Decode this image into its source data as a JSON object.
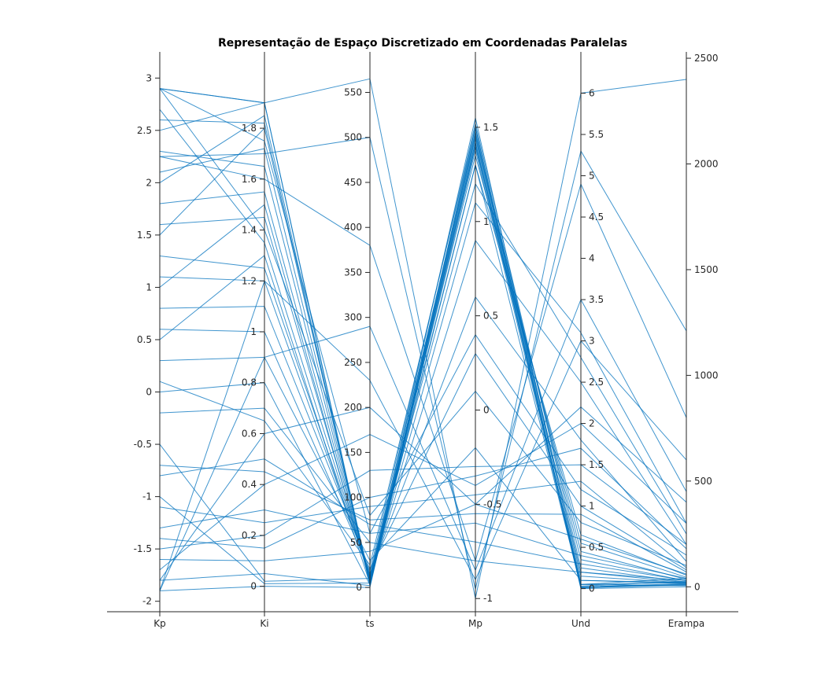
{
  "chart_data": {
    "type": "parallel-coordinates",
    "title": "Representação de Espaço Discretizado em Coordenadas Paralelas",
    "line_color": "#0072BD",
    "axes": [
      {
        "name": "Kp",
        "range": [
          -2.1,
          3.25
        ],
        "ticks": [
          -2,
          -1.5,
          -1,
          -0.5,
          0,
          0.5,
          1,
          1.5,
          2,
          2.5,
          3
        ],
        "tick_labels": [
          "-2",
          "-1.5",
          "-1",
          "-0.5",
          "0",
          "0.5",
          "1",
          "1.5",
          "2",
          "2.5",
          "3"
        ],
        "tick_side": "left"
      },
      {
        "name": "Ki",
        "range": [
          -0.1,
          2.1
        ],
        "ticks": [
          0,
          0.2,
          0.4,
          0.6,
          0.8,
          1,
          1.2,
          1.4,
          1.6,
          1.8
        ],
        "tick_labels": [
          "0",
          "0.2",
          "0.4",
          "0.6",
          "0.8",
          "1",
          "1.2",
          "1.4",
          "1.6",
          "1.8"
        ],
        "tick_side": "left"
      },
      {
        "name": "ts",
        "range": [
          -27,
          595
        ],
        "ticks": [
          0,
          50,
          100,
          150,
          200,
          250,
          300,
          350,
          400,
          450,
          500,
          550
        ],
        "tick_labels": [
          "0",
          "50",
          "100",
          "150",
          "200",
          "250",
          "300",
          "350",
          "400",
          "450",
          "500",
          "550"
        ],
        "tick_side": "left"
      },
      {
        "name": "Mp",
        "range": [
          -1.07,
          1.9
        ],
        "ticks": [
          -1,
          -0.5,
          0,
          0.5,
          1,
          1.5
        ],
        "tick_labels": [
          "-1",
          "-0.5",
          "0",
          "0.5",
          "1",
          "1.5"
        ],
        "tick_side": "right"
      },
      {
        "name": "Und",
        "range": [
          -0.28,
          6.5
        ],
        "ticks": [
          0,
          0.5,
          1,
          1.5,
          2,
          2.5,
          3,
          3.5,
          4,
          4.5,
          5,
          5.5,
          6
        ],
        "tick_labels": [
          "0",
          "0.5",
          "1",
          "1.5",
          "2",
          "2.5",
          "3",
          "3.5",
          "4",
          "4.5",
          "5",
          "5.5",
          "6"
        ],
        "tick_side": "right"
      },
      {
        "name": "Erampa",
        "range": [
          -118,
          2530
        ],
        "ticks": [
          0,
          500,
          1000,
          1500,
          2000,
          2500
        ],
        "tick_labels": [
          "0",
          "500",
          "1000",
          "1500",
          "2000",
          "2500"
        ],
        "tick_side": "right"
      }
    ],
    "observations": [
      [
        2.9,
        1.9,
        5,
        1.42,
        0.05,
        20
      ],
      [
        2.9,
        1.9,
        565,
        -1.0,
        6.0,
        2400
      ],
      [
        2.25,
        1.7,
        500,
        -0.95,
        5.3,
        1210
      ],
      [
        2.25,
        1.6,
        380,
        -0.8,
        4.9,
        800
      ],
      [
        -1.9,
        1.2,
        230,
        -0.9,
        3.0,
        600
      ],
      [
        -1.9,
        0.9,
        290,
        -0.85,
        3.5,
        450
      ],
      [
        -1.8,
        0.6,
        200,
        -0.5,
        2.2,
        400
      ],
      [
        -1.7,
        0.4,
        170,
        -0.4,
        2.0,
        300
      ],
      [
        -1.5,
        0.2,
        130,
        -0.3,
        1.5,
        200
      ],
      [
        -1.0,
        0.01,
        5,
        1.45,
        0.2,
        30
      ],
      [
        -0.5,
        0.02,
        10,
        1.48,
        0.1,
        20
      ],
      [
        0.0,
        0.8,
        3,
        1.38,
        0.01,
        10
      ],
      [
        0.5,
        1.3,
        4,
        1.42,
        0.02,
        15
      ],
      [
        1.0,
        1.5,
        6,
        1.44,
        0.03,
        25
      ],
      [
        1.5,
        1.8,
        8,
        1.55,
        0.05,
        40
      ],
      [
        2.0,
        1.85,
        3,
        1.3,
        0.02,
        12
      ],
      [
        2.5,
        1.9,
        2,
        1.47,
        0.01,
        8
      ],
      [
        2.9,
        1.75,
        60,
        0.4,
        1.2,
        150
      ],
      [
        2.9,
        1.4,
        80,
        0.1,
        0.8,
        100
      ],
      [
        -1.9,
        0.0,
        0,
        1.5,
        0.0,
        0
      ],
      [
        -1.8,
        0.05,
        2,
        1.4,
        0.05,
        5
      ],
      [
        -1.6,
        0.1,
        40,
        -0.5,
        0.6,
        60
      ],
      [
        -1.3,
        0.3,
        60,
        -0.6,
        0.4,
        40
      ],
      [
        -0.8,
        0.5,
        70,
        -0.7,
        0.3,
        30
      ],
      [
        -0.2,
        0.7,
        50,
        -0.8,
        0.2,
        20
      ],
      [
        0.3,
        0.9,
        30,
        -0.2,
        0.1,
        15
      ],
      [
        0.8,
        1.1,
        20,
        0.3,
        1.0,
        80
      ],
      [
        1.3,
        1.25,
        15,
        0.6,
        1.8,
        120
      ],
      [
        1.8,
        1.55,
        10,
        0.9,
        2.5,
        200
      ],
      [
        2.3,
        1.65,
        8,
        1.1,
        3.1,
        300
      ],
      [
        2.7,
        1.35,
        12,
        1.2,
        2.8,
        250
      ],
      [
        -1.4,
        0.15,
        100,
        -0.35,
        1.7,
        180
      ],
      [
        -1.1,
        0.25,
        90,
        -0.45,
        1.3,
        90
      ],
      [
        -0.7,
        0.45,
        75,
        -0.55,
        0.9,
        70
      ],
      [
        0.1,
        0.65,
        25,
        1.5,
        0.15,
        18
      ],
      [
        0.6,
        1.0,
        18,
        1.52,
        0.25,
        22
      ],
      [
        1.1,
        1.2,
        14,
        1.46,
        0.35,
        28
      ],
      [
        1.6,
        1.45,
        11,
        1.4,
        0.45,
        35
      ],
      [
        2.1,
        1.72,
        9,
        1.35,
        0.55,
        45
      ],
      [
        2.6,
        1.82,
        7,
        1.3,
        0.65,
        55
      ]
    ]
  }
}
